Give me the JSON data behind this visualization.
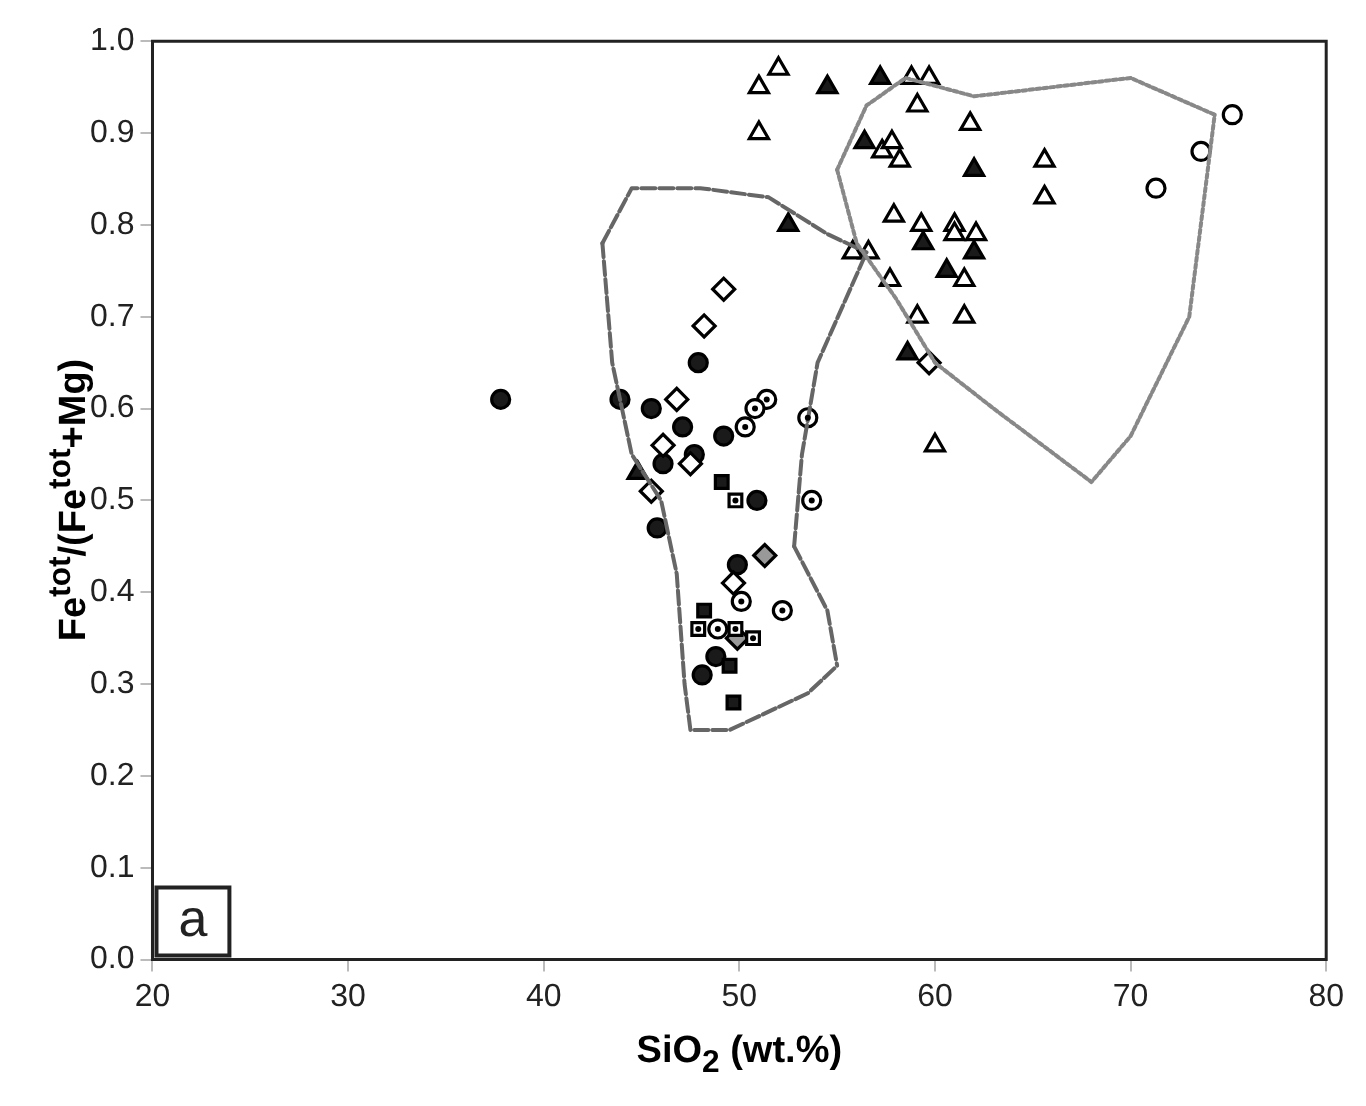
{
  "chart_data": {
    "type": "scatter",
    "xlabel": "SiO$_{2}$ (wt.%)",
    "ylabel": "Fe$^{tot}$/(Fe$^{tot}$+Mg)",
    "xlim": [
      20,
      80
    ],
    "xticks": [
      20,
      30,
      40,
      50,
      60,
      70,
      80
    ],
    "ylim": [
      0,
      1
    ],
    "yticks": [
      {
        "value": 0,
        "label": "0.0"
      },
      {
        "value": 0.1,
        "label": "0.1"
      },
      {
        "value": 0.2,
        "label": "0.2"
      },
      {
        "value": 0.3,
        "label": "0.3"
      },
      {
        "value": 0.4,
        "label": "0.4"
      },
      {
        "value": 0.5,
        "label": "0.5"
      },
      {
        "value": 0.6,
        "label": "0.6"
      },
      {
        "value": 0.7,
        "label": "0.7"
      },
      {
        "value": 0.8,
        "label": "0.8"
      },
      {
        "value": 0.9,
        "label": "0.9"
      },
      {
        "value": 1,
        "label": "1.0"
      }
    ],
    "grid": false,
    "legend": false,
    "annotations": [
      "a"
    ],
    "series": [
      {
        "marker": "circle",
        "color": "#1a1a1a",
        "x": [
          37.8,
          43.9,
          45.5,
          47.9,
          47.1,
          49.2,
          46.1,
          47.7,
          50.9,
          45.8,
          49.9,
          48.8,
          48.1
        ],
        "values": [
          0.61,
          0.61,
          0.6,
          0.65,
          0.58,
          0.57,
          0.54,
          0.55,
          0.5,
          0.47,
          0.43,
          0.33,
          0.31
        ]
      },
      {
        "marker": "square",
        "color": "#1a1a1a",
        "x": [
          49.1,
          48.2,
          49.7,
          49.5
        ],
        "values": [
          0.52,
          0.38,
          0.28,
          0.32
        ]
      },
      {
        "marker": "diamond",
        "color": "#ffffff",
        "x": [
          49.2,
          48.2,
          46.8,
          46.1,
          47.5,
          45.5,
          49.7,
          59.7
        ],
        "values": [
          0.73,
          0.69,
          0.61,
          0.56,
          0.54,
          0.51,
          0.41,
          0.65
        ]
      },
      {
        "marker": "diamond",
        "color": "#999999",
        "x": [
          51.3,
          49.9
        ],
        "values": [
          0.44,
          0.35
        ]
      },
      {
        "marker": "square-dot",
        "color": "#ffffff",
        "x": [
          49.8,
          47.9,
          50.7,
          49.8
        ],
        "values": [
          0.5,
          0.36,
          0.35,
          0.36
        ]
      },
      {
        "marker": "circle-dot",
        "color": "#ffffff",
        "x": [
          50.3,
          51.4,
          50.8,
          53.5,
          53.7,
          50.1,
          52.2,
          48.9
        ],
        "values": [
          0.58,
          0.61,
          0.6,
          0.59,
          0.5,
          0.39,
          0.38,
          0.36
        ]
      },
      {
        "marker": "triangle",
        "color": "#1a1a1a",
        "x": [
          44.8,
          52.5,
          54.5,
          57.2,
          56.4,
          62.0,
          59.4,
          62.0,
          60.6,
          58.6
        ],
        "values": [
          0.53,
          0.8,
          0.95,
          0.96,
          0.89,
          0.86,
          0.78,
          0.77,
          0.75,
          0.66
        ]
      },
      {
        "marker": "triangle",
        "color": "#ffffff",
        "x": [
          52.0,
          51.0,
          51.0,
          58.8,
          59.7,
          59.1,
          61.8,
          57.3,
          58.2,
          57.8,
          65.6,
          65.6,
          57.9,
          59.3,
          61.0,
          61.0,
          62.1,
          56.6,
          55.8,
          57.7,
          59.1,
          61.5,
          61.5,
          60.0
        ],
        "values": [
          0.97,
          0.95,
          0.9,
          0.96,
          0.96,
          0.93,
          0.91,
          0.88,
          0.87,
          0.89,
          0.87,
          0.83,
          0.81,
          0.8,
          0.8,
          0.79,
          0.79,
          0.77,
          0.77,
          0.74,
          0.7,
          0.7,
          0.74,
          0.56
        ]
      },
      {
        "marker": "circle",
        "color": "#ffffff",
        "x": [
          75.2,
          73.6,
          71.3
        ],
        "values": [
          0.92,
          0.88,
          0.84
        ]
      },
      {
        "type": "line",
        "marker": "none",
        "line_style": "dashed",
        "color": "#666666",
        "x": [
          43,
          44.5,
          48,
          51.5,
          54.5,
          56.5
        ],
        "values": [
          0.78,
          0.84,
          0.84,
          0.83,
          0.79,
          0.77
        ]
      },
      {
        "type": "line",
        "marker": "none",
        "line_style": "dashed",
        "color": "#666666",
        "x": [
          52.8,
          53.2,
          54,
          56.5
        ],
        "values": [
          0.45,
          0.55,
          0.65,
          0.77
        ]
      },
      {
        "type": "line",
        "marker": "none",
        "line_style": "dashed",
        "color": "#666666",
        "x": [
          52.8,
          54.5,
          55
        ],
        "values": [
          0.45,
          0.38,
          0.32
        ]
      },
      {
        "type": "line",
        "marker": "none",
        "line_style": "dashed",
        "color": "#666666",
        "x": [
          43,
          43.5,
          44.5,
          46,
          46.8,
          47.2,
          47.5,
          49.5,
          51.5,
          53.5,
          55
        ],
        "values": [
          0.78,
          0.65,
          0.55,
          0.5,
          0.42,
          0.3,
          0.25,
          0.25,
          0.27,
          0.29,
          0.32
        ]
      },
      {
        "type": "line",
        "marker": "none",
        "line_style": "dotted",
        "color": "#888888",
        "x": [
          55,
          56.5,
          58.5,
          62,
          66,
          70,
          74.3
        ],
        "values": [
          0.86,
          0.93,
          0.96,
          0.94,
          0.95,
          0.96,
          0.92
        ]
      },
      {
        "type": "line",
        "marker": "none",
        "line_style": "dotted",
        "color": "#888888",
        "x": [
          55,
          56,
          58,
          60,
          63,
          68,
          70,
          73,
          74.3
        ],
        "values": [
          0.86,
          0.78,
          0.72,
          0.65,
          0.6,
          0.52,
          0.57,
          0.7,
          0.92
        ]
      }
    ]
  }
}
